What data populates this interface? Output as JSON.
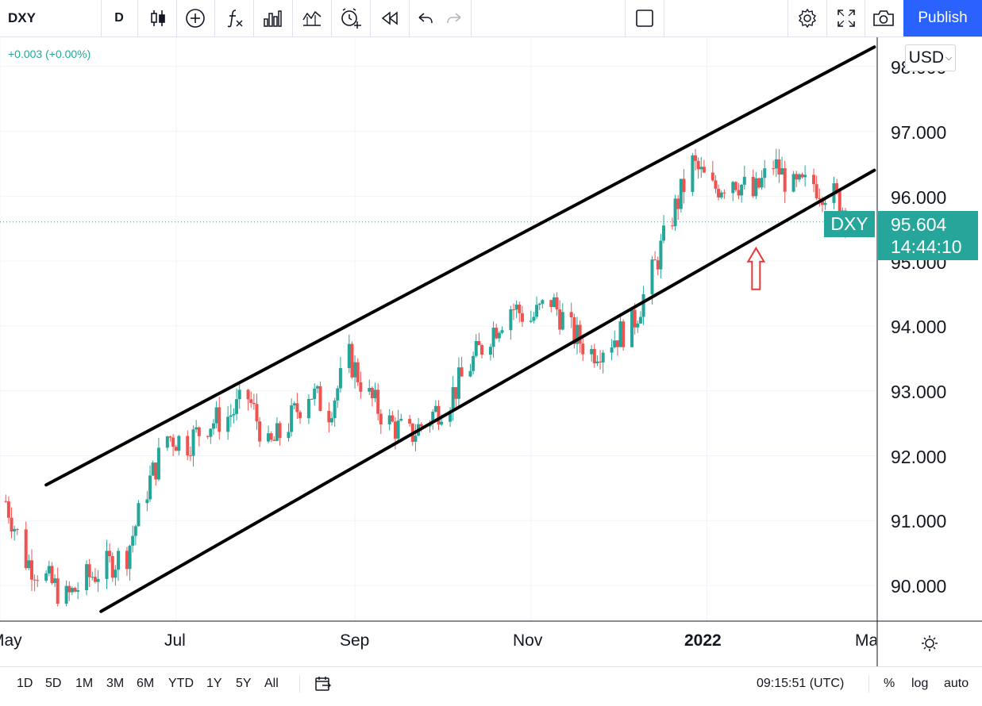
{
  "toolbar": {
    "symbol": "DXY",
    "interval": "D",
    "publish_label": "Publish",
    "icons": [
      "candles-icon",
      "add-indicator-icon",
      "fx-icon",
      "bar-chart-icon",
      "compare-icon",
      "alert-icon",
      "replay-icon",
      "undo-icon",
      "redo-icon",
      "layout-square-icon",
      "settings-icon",
      "fullscreen-icon",
      "snapshot-icon"
    ]
  },
  "legend": {
    "change": "+0.003 (+0.00%)"
  },
  "price_axis": {
    "currency": "USD",
    "tick_labels": [
      "98.000",
      "97.000",
      "96.000",
      "95.000",
      "94.000",
      "93.000",
      "92.000",
      "91.000",
      "90.000"
    ]
  },
  "last_price": {
    "symbol": "DXY",
    "price": "95.604",
    "countdown": "14:44:10"
  },
  "time_axis": {
    "labels": [
      "May",
      "Jul",
      "Sep",
      "Nov",
      "2022",
      "Mar"
    ]
  },
  "bottom": {
    "ranges": [
      "1D",
      "5D",
      "1M",
      "3M",
      "6M",
      "YTD",
      "1Y",
      "5Y",
      "All"
    ],
    "time": "09:15:51 (UTC)",
    "percent_label": "%",
    "log_label": "log",
    "auto_label": "auto"
  },
  "colors": {
    "up": "#26a69a",
    "down": "#ef5350",
    "accent": "#2962ff",
    "channel": "#000000",
    "arrow": "#e53935"
  },
  "chart_data": {
    "type": "candlestick",
    "title": "",
    "ylim": [
      89.45,
      98.45
    ],
    "x_range": [
      "2021-05-01",
      "2022-03-01"
    ],
    "grid": true,
    "close_series": [
      [
        "2021-05-03",
        91.3
      ],
      [
        "2021-05-10",
        90.4
      ],
      [
        "2021-05-17",
        90.1
      ],
      [
        "2021-05-24",
        89.8
      ],
      [
        "2021-05-31",
        90.1
      ],
      [
        "2021-06-07",
        90.3
      ],
      [
        "2021-06-14",
        90.5
      ],
      [
        "2021-06-21",
        91.5
      ],
      [
        "2021-06-28",
        92.3
      ],
      [
        "2021-07-05",
        92.2
      ],
      [
        "2021-07-12",
        92.5
      ],
      [
        "2021-07-19",
        92.6
      ],
      [
        "2021-07-26",
        92.9
      ],
      [
        "2021-08-02",
        92.1
      ],
      [
        "2021-08-09",
        92.5
      ],
      [
        "2021-08-16",
        93.0
      ],
      [
        "2021-08-23",
        92.7
      ],
      [
        "2021-08-30",
        93.5
      ],
      [
        "2021-09-06",
        92.9
      ],
      [
        "2021-09-13",
        92.5
      ],
      [
        "2021-09-20",
        92.3
      ],
      [
        "2021-09-27",
        92.6
      ],
      [
        "2021-10-04",
        92.9
      ],
      [
        "2021-10-11",
        93.4
      ],
      [
        "2021-10-18",
        93.9
      ],
      [
        "2021-10-25",
        94.3
      ],
      [
        "2021-11-01",
        94.1
      ],
      [
        "2021-11-08",
        94.4
      ],
      [
        "2021-11-15",
        93.9
      ],
      [
        "2021-11-22",
        93.6
      ],
      [
        "2021-11-29",
        93.8
      ],
      [
        "2021-12-06",
        94.0
      ],
      [
        "2021-12-13",
        94.8
      ],
      [
        "2021-12-20",
        95.7
      ],
      [
        "2021-12-27",
        96.5
      ],
      [
        "2022-01-03",
        96.1
      ],
      [
        "2022-01-10",
        96.3
      ],
      [
        "2022-01-17",
        96.0
      ],
      [
        "2022-01-24",
        96.5
      ],
      [
        "2022-01-31",
        96.1
      ],
      [
        "2022-02-07",
        96.2
      ],
      [
        "2022-02-14",
        96.0
      ],
      [
        "2022-02-21",
        95.604
      ]
    ],
    "channel_lines": [
      {
        "name": "upper",
        "from": [
          "2021-05-17",
          91.55
        ],
        "to": [
          "2022-02-28",
          98.3
        ]
      },
      {
        "name": "lower",
        "from": [
          "2021-06-05",
          89.6
        ],
        "to": [
          "2022-02-28",
          96.4
        ]
      }
    ],
    "annotation": {
      "type": "arrow",
      "direction": "up",
      "at": [
        "2022-01-18",
        95.2
      ]
    }
  }
}
